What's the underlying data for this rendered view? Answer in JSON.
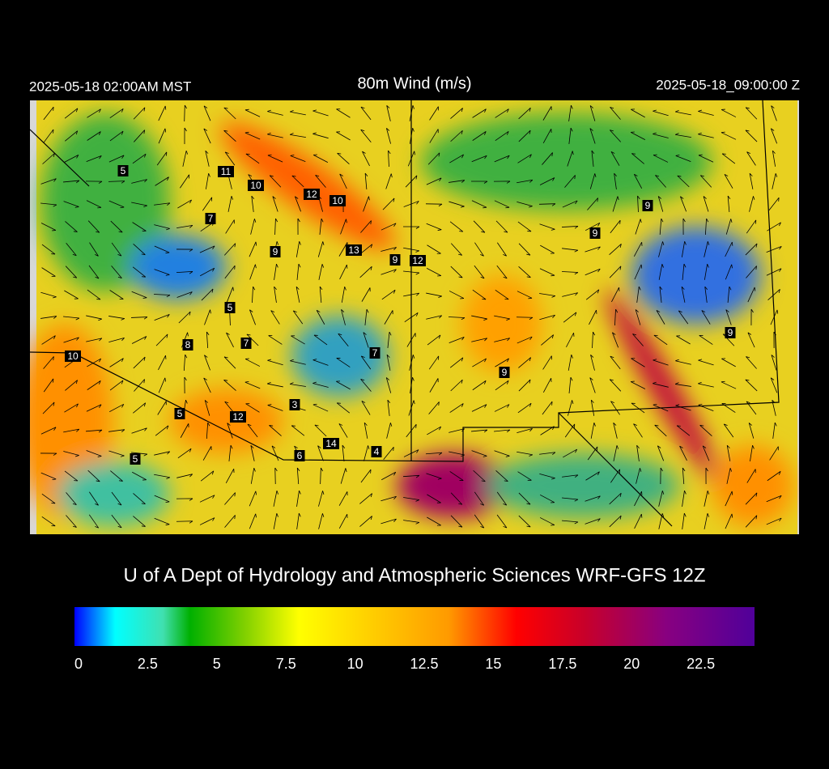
{
  "header": {
    "left": "2025-05-18 02:00AM MST",
    "title": "80m Wind (m/s)",
    "right": "2025-05-18_09:00:00 Z"
  },
  "map": {
    "stations": [
      "5",
      "11",
      "10",
      "12",
      "10",
      "7",
      "9",
      "13",
      "9",
      "12",
      "9",
      "9",
      "5",
      "7",
      "8",
      "7",
      "10",
      "9",
      "9",
      "3",
      "5",
      "12",
      "14",
      "4",
      "6",
      "5"
    ]
  },
  "footer": {
    "credit": "U of A Dept of Hydrology and Atmospheric Sciences WRF-GFS 12Z"
  },
  "colorbar": {
    "range": [
      0,
      24.5
    ],
    "ticks": [
      0,
      2.5,
      5,
      7.5,
      10,
      12.5,
      15,
      17.5,
      20,
      22.5
    ]
  }
}
